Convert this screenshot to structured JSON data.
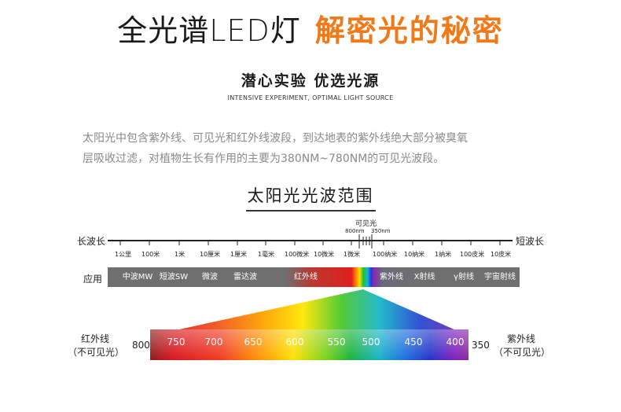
{
  "header": {
    "title_main": "全光谱LED灯",
    "title_accent": "解密光的秘密"
  },
  "intro": {
    "subtitle": "潜心实验  优选光源",
    "subtitle_en": "INTENSIVE EXPERIMENT, OPTIMAL LIGHT SOURCE",
    "description_line1": "太阳光中包含紫外线、可见光和红外线波段，到达地表的紫外线绝大部分被臭氧",
    "description_line2": "层吸收过滤，对植物生长有作用的主要为380NM~780NM的可见光波段。"
  },
  "diagram": {
    "section_title": "太阳光光波范围",
    "long_wave_label": "长波长",
    "short_wave_label": "短波长",
    "visible_label": "可见光",
    "visible_marks": [
      "800nm",
      "350nm"
    ],
    "scale_ticks": [
      "1公里",
      "100米",
      "1米",
      "10厘米",
      "1厘米",
      "1毫米",
      "100微米",
      "10微米",
      "1微米",
      "100纳米",
      "10纳米",
      "1纳米",
      "100皮米",
      "10皮米"
    ],
    "application_label": "应用",
    "applications": [
      "中波MW",
      "短波SW",
      "微波",
      "雷达波",
      "红外线",
      "紫外线",
      "X射线",
      "γ射线",
      "宇宙射线"
    ],
    "infrared_label": "红外线",
    "infrared_sub": "（不可见光）",
    "ultraviolet_label": "紫外线",
    "ultraviolet_sub": "（不可见光）",
    "spectrum_start": "800",
    "spectrum_end": "350",
    "spectrum_ticks": [
      "750",
      "700",
      "650",
      "600",
      "550",
      "500",
      "450",
      "400"
    ]
  },
  "colors": {
    "accent": "#f07a1a",
    "app_bar_gray": "#6f6f6f"
  }
}
